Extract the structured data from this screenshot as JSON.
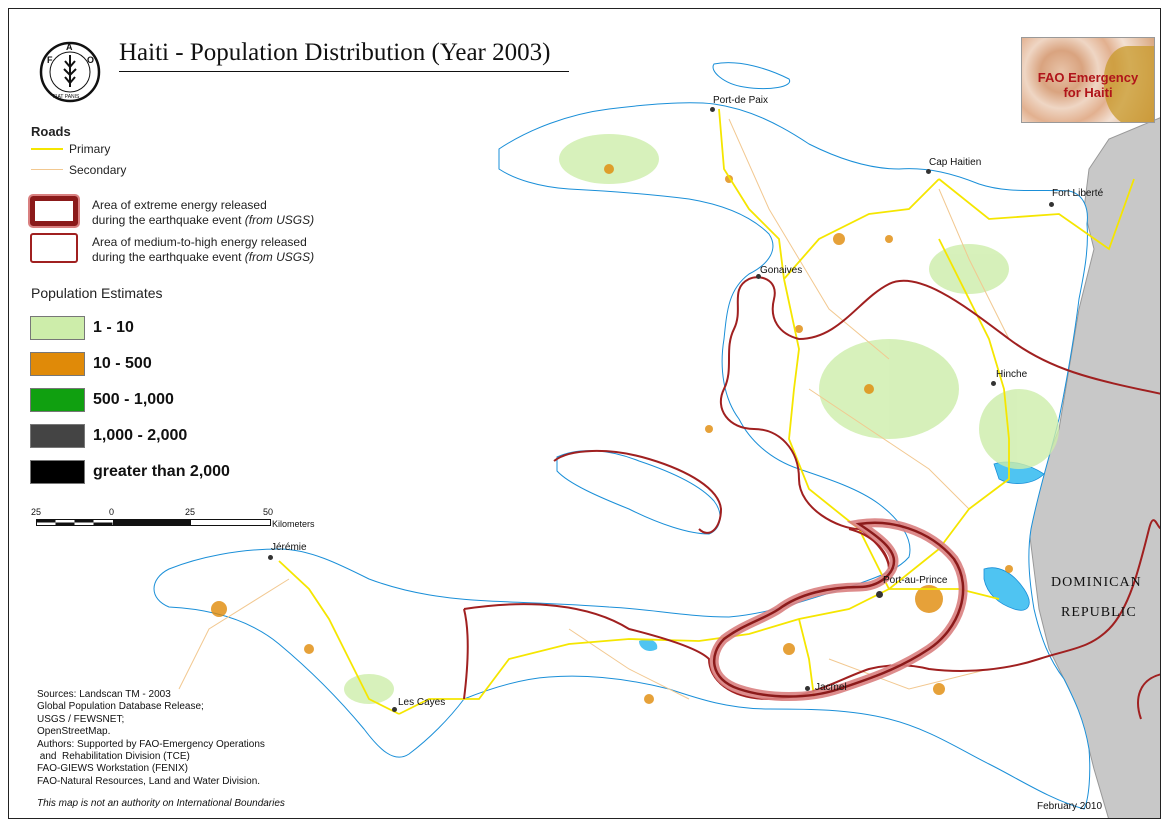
{
  "title": "Haiti - Population Distribution (Year 2003)",
  "logo": {
    "letters": [
      "F",
      "A",
      "O"
    ],
    "motto": "FIAT PANIS"
  },
  "badge": {
    "line1": "FAO Emergency",
    "line2": "for Haiti"
  },
  "roads_legend": {
    "heading": "Roads",
    "primary": "Primary",
    "secondary": "Secondary"
  },
  "energy_legend": {
    "extreme_l1": "Area of extreme energy released",
    "extreme_l2": "during the earthquake event",
    "medium_l1": "Area of medium-to-high energy released",
    "medium_l2": "during the earthquake event",
    "source": "(from USGS)"
  },
  "population_legend": {
    "heading": "Population Estimates",
    "classes": [
      {
        "label": "1 - 10",
        "color": "#cdedaa"
      },
      {
        "label": "10 - 500",
        "color": "#e08a08"
      },
      {
        "label": "500 - 1,000",
        "color": "#10a010"
      },
      {
        "label": "1,000 - 2,000",
        "color": "#444444"
      },
      {
        "label": "greater than 2,000",
        "color": "#000000"
      }
    ]
  },
  "scale_bar": {
    "ticks": [
      "25",
      "0",
      "25",
      "50"
    ],
    "unit": "Kilometers"
  },
  "cities": [
    {
      "name": "Port-de Paix"
    },
    {
      "name": "Cap Haitien"
    },
    {
      "name": "Fort Liberté"
    },
    {
      "name": "Gonaives"
    },
    {
      "name": "Hinche"
    },
    {
      "name": "Jérémie"
    },
    {
      "name": "Port-au-Prince"
    },
    {
      "name": "Jacmel"
    },
    {
      "name": "Les Cayes"
    }
  ],
  "neighbor": {
    "line1": "DOMINICAN",
    "line2": "REPUBLIC"
  },
  "sources": [
    "Sources: Landscan TM - 2003",
    "Global Population Database Release;",
    "USGS / FEWSNET;",
    "OpenStreetMap.",
    "Authors:  Supported by FAO-Emergency Operations",
    " and  Rehabilitation Division (TCE)",
    "FAO-GIEWS Workstation (FENIX)",
    "FAO-Natural Resources, Land and Water Division."
  ],
  "disclaimer": "This map is not an authority on International Boundaries",
  "date": "February 2010",
  "colors": {
    "primary_road": "#f5e600",
    "secondary_road": "#f2c890",
    "extreme_zone": "#8b1a1a",
    "extreme_halo": "#d98080",
    "medium_zone": "#a02020",
    "dominican": "#c8c8c8",
    "water": "#4fc4f2",
    "coast": "#1a8fd8"
  }
}
